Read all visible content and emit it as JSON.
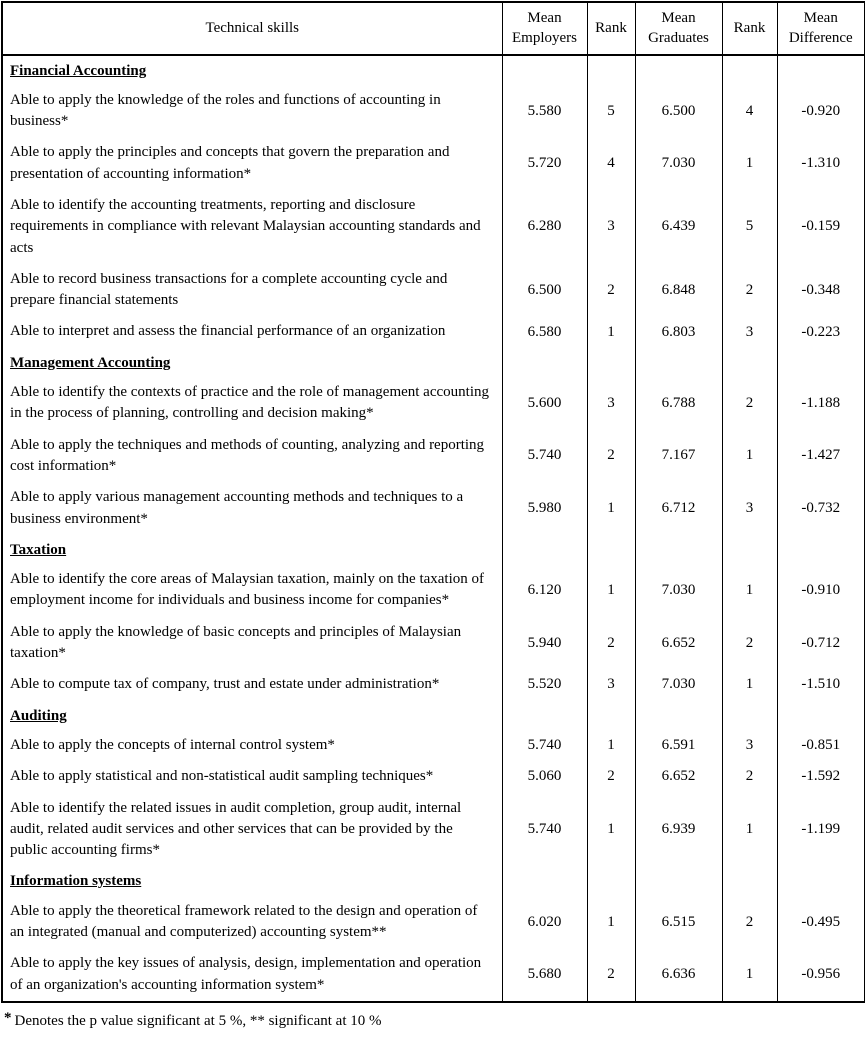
{
  "table": {
    "columns": [
      "Technical skills",
      "Mean Employers",
      "Rank",
      "Mean Graduates",
      "Rank",
      "Mean Difference"
    ],
    "sections": [
      {
        "title": "Financial Accounting",
        "rows": [
          {
            "skill": "Able to apply the knowledge of the roles and functions of accounting in business*",
            "mean_employers": "5.580",
            "rank_employers": "5",
            "mean_graduates": "6.500",
            "rank_graduates": "4",
            "mean_difference": "-0.920"
          },
          {
            "skill": "Able to apply the principles and concepts that govern the preparation and presentation of accounting information*",
            "mean_employers": "5.720",
            "rank_employers": "4",
            "mean_graduates": "7.030",
            "rank_graduates": "1",
            "mean_difference": "-1.310"
          },
          {
            "skill": "Able to identify the accounting treatments, reporting and disclosure requirements in compliance with relevant Malaysian accounting standards and acts",
            "mean_employers": "6.280",
            "rank_employers": "3",
            "mean_graduates": "6.439",
            "rank_graduates": "5",
            "mean_difference": "-0.159"
          },
          {
            "skill": "Able to record business transactions for a complete accounting cycle and prepare financial statements",
            "mean_employers": "6.500",
            "rank_employers": "2",
            "mean_graduates": "6.848",
            "rank_graduates": "2",
            "mean_difference": "-0.348"
          },
          {
            "skill": "Able to interpret and assess the financial performance of an organization",
            "mean_employers": "6.580",
            "rank_employers": "1",
            "mean_graduates": "6.803",
            "rank_graduates": "3",
            "mean_difference": "-0.223"
          }
        ]
      },
      {
        "title": "Management Accounting",
        "rows": [
          {
            "skill": "Able to identify the  contexts of practice and the role of management accounting in the process of planning, controlling and decision making*",
            "mean_employers": "5.600",
            "rank_employers": "3",
            "mean_graduates": "6.788",
            "rank_graduates": "2",
            "mean_difference": "-1.188"
          },
          {
            "skill": "Able to apply the techniques and methods of counting, analyzing and reporting cost information*",
            "mean_employers": "5.740",
            "rank_employers": "2",
            "mean_graduates": "7.167",
            "rank_graduates": "1",
            "mean_difference": "-1.427"
          },
          {
            "skill": "Able to apply various management accounting methods and techniques to a business environment*",
            "mean_employers": "5.980",
            "rank_employers": "1",
            "mean_graduates": "6.712",
            "rank_graduates": "3",
            "mean_difference": "-0.732"
          }
        ]
      },
      {
        "title": "Taxation",
        "rows": [
          {
            "skill": "Able to identify the core areas of Malaysian taxation, mainly on the taxation of employment income for individuals and business income for companies*",
            "mean_employers": "6.120",
            "rank_employers": "1",
            "mean_graduates": "7.030",
            "rank_graduates": "1",
            "mean_difference": "-0.910"
          },
          {
            "skill": "Able to apply the knowledge of basic concepts and principles of Malaysian taxation*",
            "mean_employers": "5.940",
            "rank_employers": "2",
            "mean_graduates": "6.652",
            "rank_graduates": "2",
            "mean_difference": "-0.712"
          },
          {
            "skill": "Able to compute tax of company, trust and estate under administration*",
            "mean_employers": "5.520",
            "rank_employers": "3",
            "mean_graduates": "7.030",
            "rank_graduates": "1",
            "mean_difference": "-1.510"
          }
        ]
      },
      {
        "title": "Auditing",
        "rows": [
          {
            "skill": "Able to apply the concepts of internal control system*",
            "mean_employers": "5.740",
            "rank_employers": "1",
            "mean_graduates": "6.591",
            "rank_graduates": "3",
            "mean_difference": "-0.851"
          },
          {
            "skill": "Able to apply statistical and non-statistical audit sampling techniques*",
            "mean_employers": "5.060",
            "rank_employers": "2",
            "mean_graduates": "6.652",
            "rank_graduates": "2",
            "mean_difference": "-1.592"
          },
          {
            "skill": "Able to identify the related issues in audit completion, group audit, internal audit, related audit services and other services that can be provided by the public accounting firms*",
            "mean_employers": "5.740",
            "rank_employers": "1",
            "mean_graduates": "6.939",
            "rank_graduates": "1",
            "mean_difference": "-1.199"
          }
        ]
      },
      {
        "title": "Information systems",
        "rows": [
          {
            "skill": "Able to apply the theoretical framework related to the design and operation of an integrated (manual and computerized) accounting system**",
            "mean_employers": "6.020",
            "rank_employers": "1",
            "mean_graduates": "6.515",
            "rank_graduates": "2",
            "mean_difference": "-0.495"
          },
          {
            "skill": "Able to apply the key issues of analysis, design, implementation and operation of an organization's accounting information system*",
            "mean_employers": "5.680",
            "rank_employers": "2",
            "mean_graduates": "6.636",
            "rank_graduates": "1",
            "mean_difference": "-0.956"
          }
        ]
      }
    ]
  },
  "footnote": {
    "marker": "*",
    "text": "Denotes the p value significant at 5 %, ** significant at 10 %"
  }
}
